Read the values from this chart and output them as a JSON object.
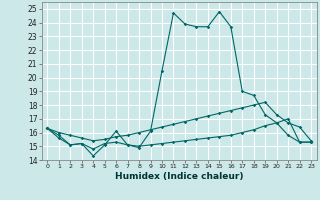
{
  "title": "",
  "xlabel": "Humidex (Indice chaleur)",
  "bg_color": "#cce8e8",
  "grid_color": "#ffffff",
  "line_color": "#006666",
  "xlim": [
    -0.5,
    23.5
  ],
  "ylim": [
    14,
    25.5
  ],
  "xticks": [
    0,
    1,
    2,
    3,
    4,
    5,
    6,
    7,
    8,
    9,
    10,
    11,
    12,
    13,
    14,
    15,
    16,
    17,
    18,
    19,
    20,
    21,
    22,
    23
  ],
  "yticks": [
    14,
    15,
    16,
    17,
    18,
    19,
    20,
    21,
    22,
    23,
    24,
    25
  ],
  "line1": {
    "x": [
      0,
      1,
      2,
      3,
      4,
      5,
      6,
      7,
      8,
      9,
      10,
      11,
      12,
      13,
      14,
      15,
      16,
      17,
      18,
      19,
      20,
      21,
      22,
      23
    ],
    "y": [
      16.3,
      15.6,
      15.1,
      15.2,
      14.3,
      15.1,
      16.1,
      15.1,
      14.9,
      16.1,
      20.5,
      24.7,
      23.9,
      23.7,
      23.7,
      24.8,
      23.7,
      19.0,
      18.7,
      17.3,
      16.7,
      15.8,
      15.3,
      15.3
    ]
  },
  "line2": {
    "x": [
      0,
      1,
      2,
      3,
      4,
      5,
      6,
      7,
      8,
      9,
      10,
      11,
      12,
      13,
      14,
      15,
      16,
      17,
      18,
      19,
      20,
      21,
      22,
      23
    ],
    "y": [
      16.3,
      15.8,
      15.1,
      15.2,
      14.8,
      15.2,
      15.3,
      15.1,
      15.0,
      15.1,
      15.2,
      15.3,
      15.4,
      15.5,
      15.6,
      15.7,
      15.8,
      16.0,
      16.2,
      16.5,
      16.7,
      17.0,
      15.3,
      15.3
    ]
  },
  "line3": {
    "x": [
      0,
      1,
      2,
      3,
      4,
      5,
      6,
      7,
      8,
      9,
      10,
      11,
      12,
      13,
      14,
      15,
      16,
      17,
      18,
      19,
      20,
      21,
      22,
      23
    ],
    "y": [
      16.3,
      16.0,
      15.8,
      15.6,
      15.4,
      15.5,
      15.7,
      15.8,
      16.0,
      16.2,
      16.4,
      16.6,
      16.8,
      17.0,
      17.2,
      17.4,
      17.6,
      17.8,
      18.0,
      18.2,
      17.3,
      16.7,
      16.4,
      15.4
    ]
  }
}
